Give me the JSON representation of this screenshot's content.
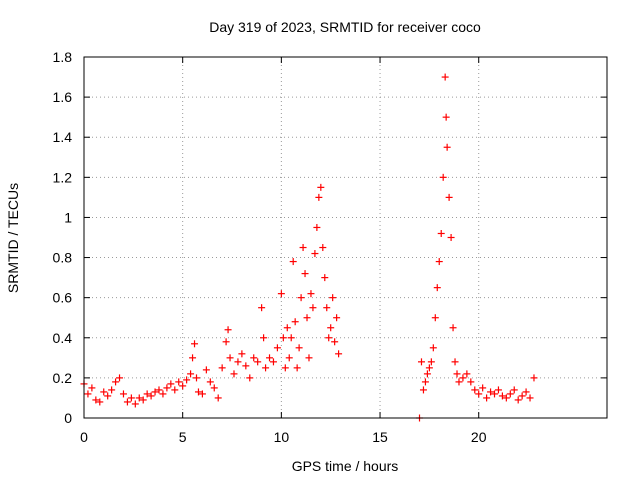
{
  "chart_data": {
    "type": "scatter",
    "title": "Day 319 of 2023, SRMTID for receiver coco",
    "xlabel": "GPS time / hours",
    "ylabel": "SRMTID / TECUs",
    "xlim": [
      0,
      26.5
    ],
    "ylim": [
      0,
      1.8
    ],
    "xticks": [
      0,
      5,
      10,
      15,
      20
    ],
    "xtick_labels": [
      "0",
      "5",
      "10",
      "15",
      "20"
    ],
    "yticks": [
      0,
      0.2,
      0.4,
      0.6,
      0.8,
      1.0,
      1.2,
      1.4,
      1.6,
      1.8
    ],
    "ytick_labels": [
      "0",
      "0.2",
      "0.4",
      "0.6",
      "0.8",
      "1",
      "1.2",
      "1.4",
      "1.6",
      "1.8"
    ],
    "grid": true,
    "marker": "+",
    "series": [
      {
        "name": "SRMTID",
        "color": "#ff0000",
        "x": [
          0.0,
          0.2,
          0.4,
          0.6,
          0.8,
          1.0,
          1.2,
          1.4,
          1.6,
          1.8,
          2.0,
          2.2,
          2.4,
          2.6,
          2.8,
          3.0,
          3.2,
          3.4,
          3.6,
          3.8,
          4.0,
          4.2,
          4.4,
          4.6,
          4.8,
          5.0,
          5.2,
          5.4,
          5.5,
          5.6,
          5.7,
          5.8,
          6.0,
          6.2,
          6.4,
          6.6,
          6.8,
          7.0,
          7.2,
          7.3,
          7.4,
          7.6,
          7.8,
          8.0,
          8.2,
          8.4,
          8.6,
          8.8,
          9.0,
          9.1,
          9.2,
          9.4,
          9.6,
          9.8,
          10.0,
          10.1,
          10.2,
          10.3,
          10.4,
          10.5,
          10.6,
          10.7,
          10.8,
          10.9,
          11.0,
          11.1,
          11.2,
          11.3,
          11.4,
          11.5,
          11.6,
          11.7,
          11.8,
          11.9,
          12.0,
          12.1,
          12.2,
          12.3,
          12.4,
          12.5,
          12.6,
          12.7,
          12.8,
          12.9,
          17.0,
          17.1,
          17.2,
          17.3,
          17.4,
          17.5,
          17.6,
          17.7,
          17.8,
          17.9,
          18.0,
          18.1,
          18.2,
          18.3,
          18.35,
          18.4,
          18.5,
          18.6,
          18.7,
          18.8,
          18.9,
          19.0,
          19.2,
          19.4,
          19.6,
          19.8,
          20.0,
          20.2,
          20.4,
          20.6,
          20.8,
          21.0,
          21.2,
          21.4,
          21.6,
          21.8,
          22.0,
          22.2,
          22.4,
          22.6,
          22.8
        ],
        "y": [
          0.17,
          0.12,
          0.15,
          0.09,
          0.08,
          0.13,
          0.11,
          0.14,
          0.18,
          0.2,
          0.12,
          0.08,
          0.1,
          0.07,
          0.1,
          0.09,
          0.12,
          0.11,
          0.13,
          0.14,
          0.12,
          0.15,
          0.17,
          0.14,
          0.18,
          0.16,
          0.19,
          0.22,
          0.3,
          0.37,
          0.2,
          0.13,
          0.12,
          0.24,
          0.18,
          0.15,
          0.1,
          0.25,
          0.38,
          0.44,
          0.3,
          0.22,
          0.28,
          0.32,
          0.26,
          0.2,
          0.3,
          0.28,
          0.55,
          0.4,
          0.25,
          0.3,
          0.28,
          0.35,
          0.62,
          0.4,
          0.25,
          0.45,
          0.3,
          0.4,
          0.78,
          0.48,
          0.25,
          0.35,
          0.6,
          0.85,
          0.72,
          0.5,
          0.3,
          0.62,
          0.55,
          0.82,
          0.95,
          1.1,
          1.15,
          0.85,
          0.7,
          0.55,
          0.4,
          0.45,
          0.6,
          0.38,
          0.5,
          0.32,
          0.0,
          0.28,
          0.14,
          0.18,
          0.22,
          0.25,
          0.28,
          0.35,
          0.5,
          0.65,
          0.78,
          0.92,
          1.2,
          1.7,
          1.5,
          1.35,
          1.1,
          0.9,
          0.45,
          0.28,
          0.22,
          0.18,
          0.2,
          0.22,
          0.18,
          0.14,
          0.12,
          0.15,
          0.1,
          0.13,
          0.12,
          0.14,
          0.11,
          0.1,
          0.12,
          0.14,
          0.09,
          0.11,
          0.13,
          0.1,
          0.2
        ]
      }
    ]
  }
}
